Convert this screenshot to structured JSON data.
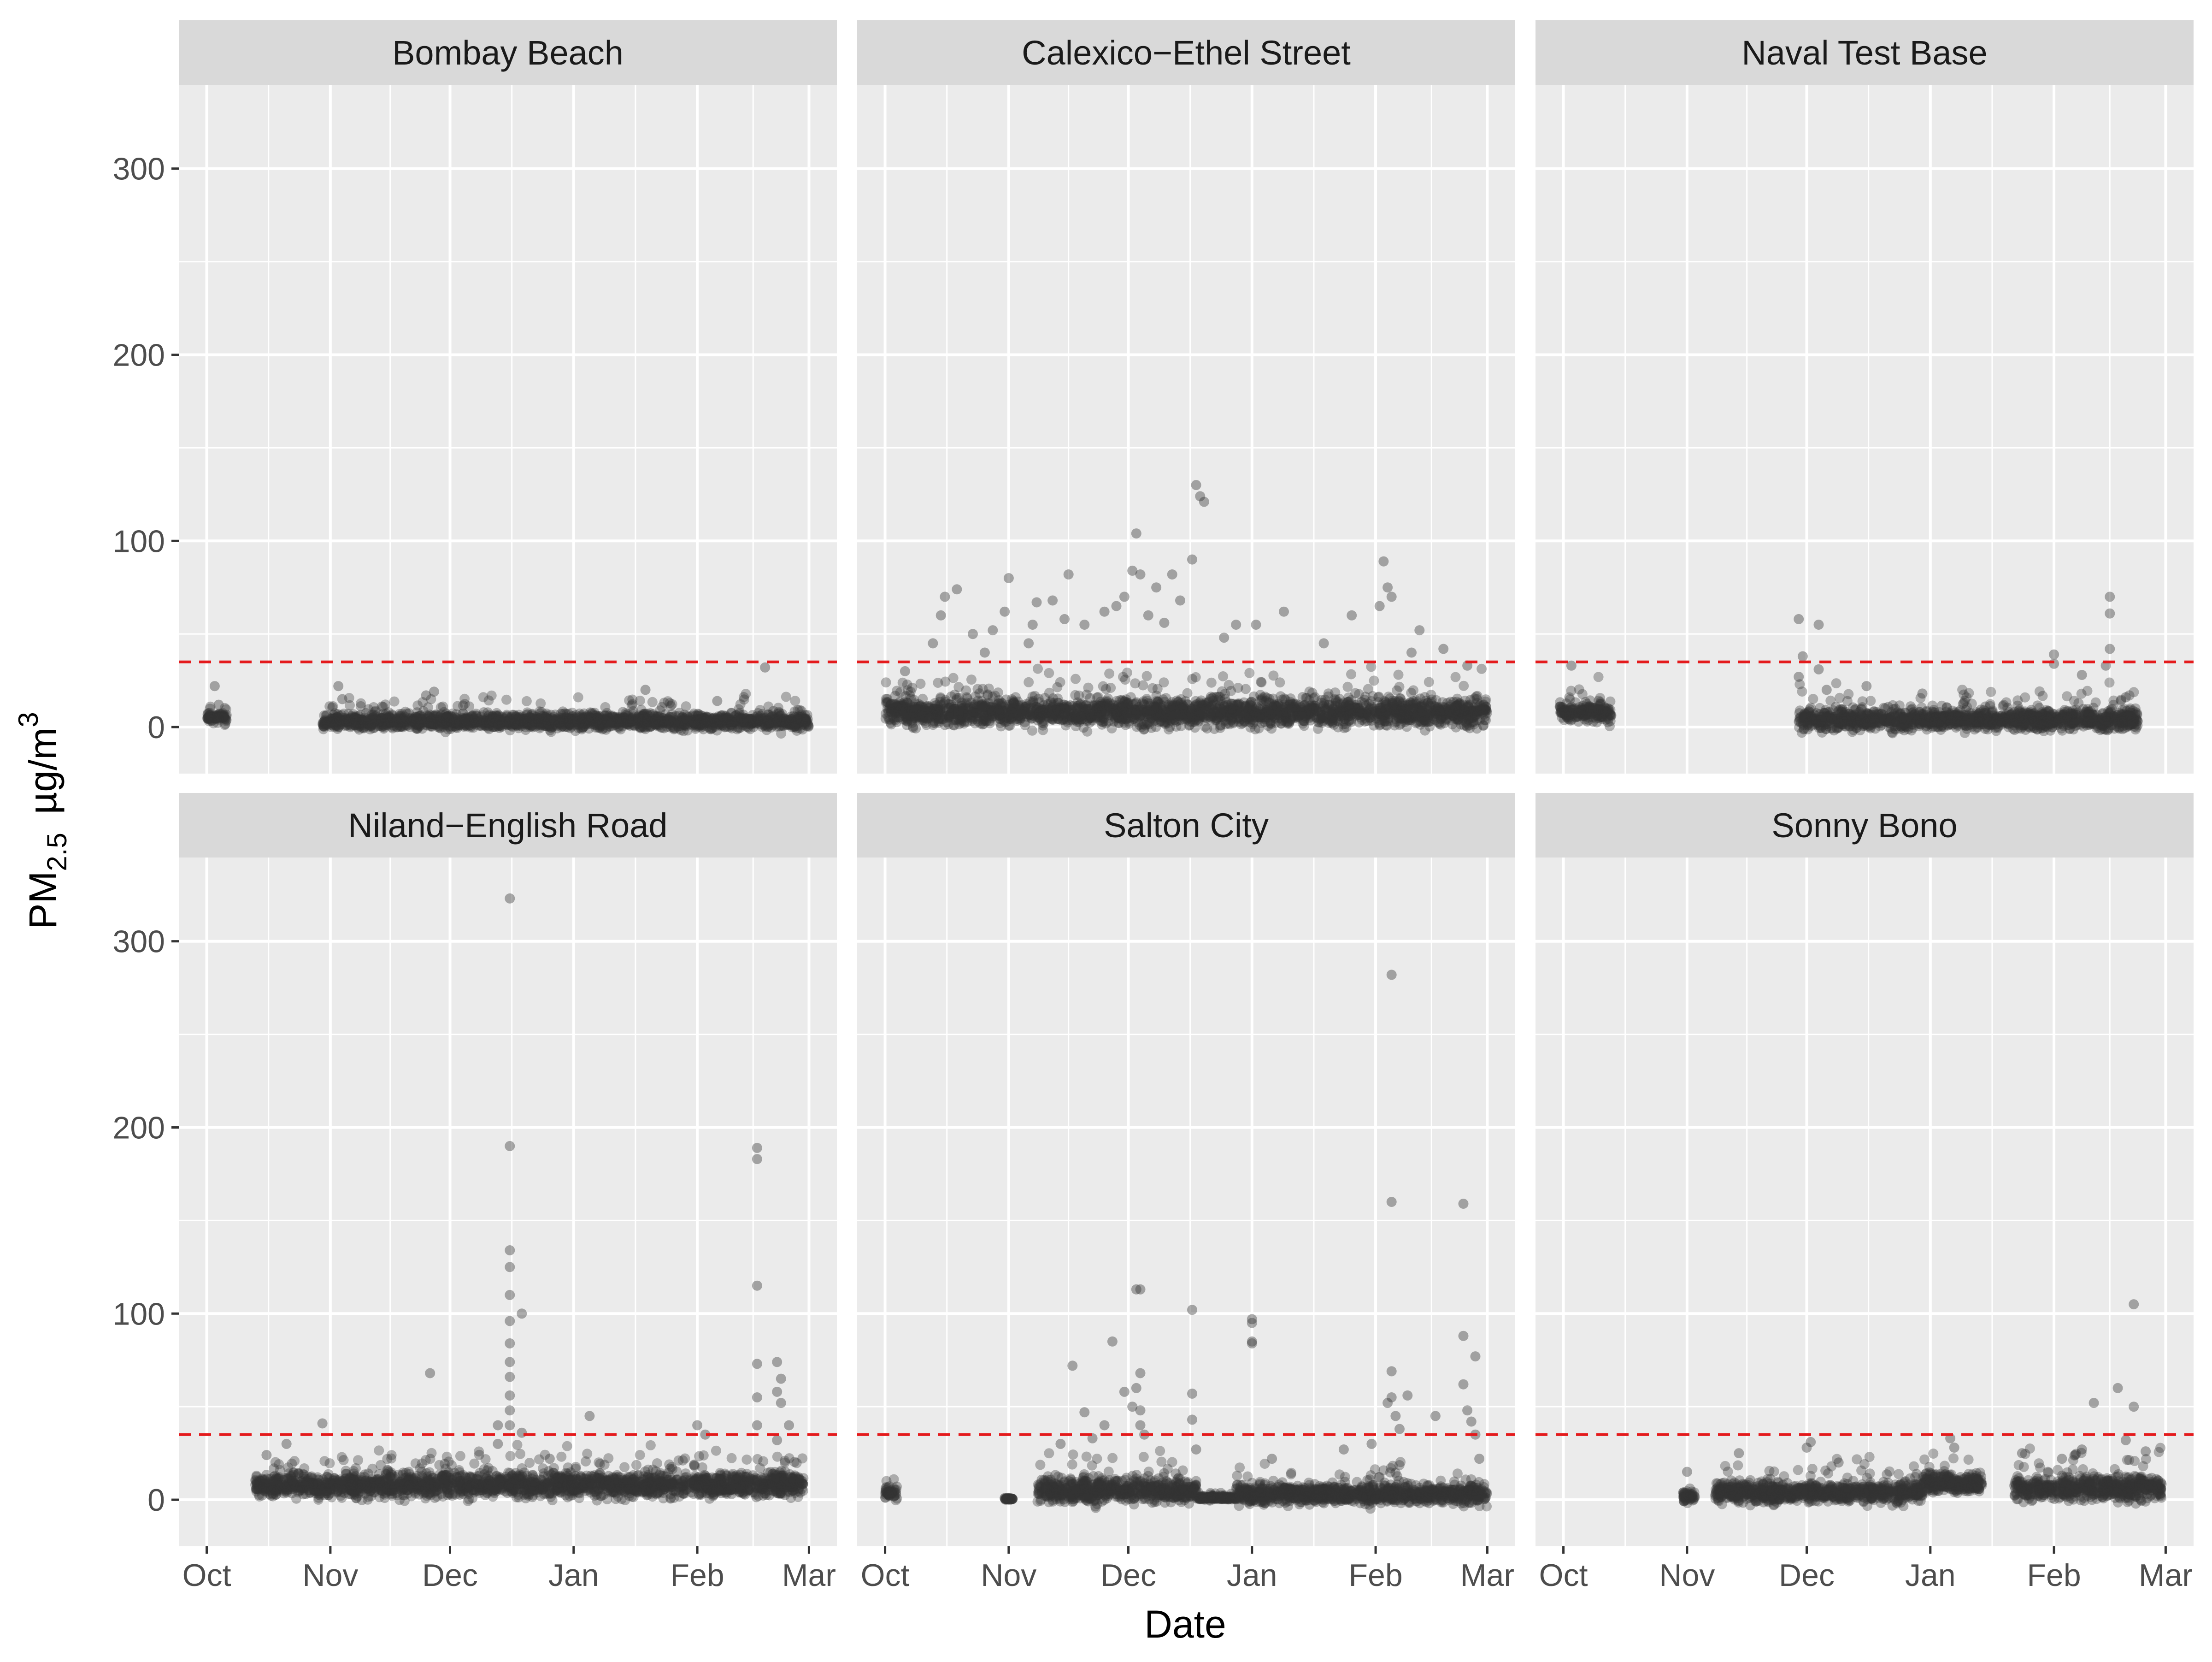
{
  "chart_data": {
    "type": "scatter",
    "faceted": true,
    "xlabel": "Date",
    "ylabel": {
      "prefix": "PM",
      "subscript": "2.5",
      "unit": "µg/m",
      "superscript": "3"
    },
    "x_ticks": [
      "Oct",
      "Nov",
      "Dec",
      "Jan",
      "Feb",
      "Mar"
    ],
    "x_tick_positions_day": [
      0,
      31,
      61,
      92,
      123,
      151
    ],
    "xlim_day": [
      -7,
      158
    ],
    "y_ticks": [
      "0",
      "100",
      "200",
      "300"
    ],
    "y_tick_values": [
      0,
      100,
      200,
      300
    ],
    "ylim": [
      -25,
      345
    ],
    "reference_line": {
      "value": 35,
      "color": "#e41a1c",
      "style": "dashed"
    },
    "point_color": "#333333",
    "panel_background": "#ebebeb",
    "strip_background": "#d9d9d9",
    "panels": [
      {
        "title": "Bombay Beach",
        "segments": [
          {
            "start": 0,
            "end": 5,
            "mean": 5,
            "spread": 3
          },
          {
            "start": 29,
            "end": 151,
            "mean": 3,
            "spread": 4
          }
        ],
        "outliers": [
          [
            2,
            22
          ],
          [
            3,
            12
          ],
          [
            33,
            22
          ],
          [
            34,
            15
          ],
          [
            55,
            17
          ],
          [
            57,
            19
          ],
          [
            110,
            20
          ],
          [
            128,
            14
          ],
          [
            140,
            32
          ]
        ]
      },
      {
        "title": "Calexico−Ethel Street",
        "segments": [
          {
            "start": 0,
            "end": 151,
            "mean": 8,
            "spread": 7
          }
        ],
        "outliers": [
          [
            5,
            30
          ],
          [
            12,
            45
          ],
          [
            14,
            60
          ],
          [
            15,
            70
          ],
          [
            18,
            74
          ],
          [
            22,
            50
          ],
          [
            25,
            40
          ],
          [
            27,
            52
          ],
          [
            30,
            62
          ],
          [
            31,
            80
          ],
          [
            36,
            45
          ],
          [
            37,
            55
          ],
          [
            38,
            67
          ],
          [
            42,
            68
          ],
          [
            45,
            58
          ],
          [
            46,
            82
          ],
          [
            50,
            55
          ],
          [
            55,
            62
          ],
          [
            58,
            65
          ],
          [
            60,
            70
          ],
          [
            62,
            84
          ],
          [
            63,
            104
          ],
          [
            64,
            82
          ],
          [
            66,
            60
          ],
          [
            68,
            75
          ],
          [
            70,
            56
          ],
          [
            72,
            82
          ],
          [
            74,
            68
          ],
          [
            78,
            130
          ],
          [
            79,
            124
          ],
          [
            80,
            121
          ],
          [
            77,
            90
          ],
          [
            85,
            48
          ],
          [
            88,
            55
          ],
          [
            93,
            55
          ],
          [
            100,
            62
          ],
          [
            110,
            45
          ],
          [
            117,
            60
          ],
          [
            124,
            65
          ],
          [
            125,
            89
          ],
          [
            126,
            75
          ],
          [
            127,
            70
          ],
          [
            132,
            40
          ],
          [
            134,
            52
          ],
          [
            140,
            42
          ],
          [
            146,
            33
          ]
        ]
      },
      {
        "title": "Naval Test Base",
        "segments": [
          {
            "start": -1,
            "end": 12,
            "mean": 8,
            "spread": 5
          },
          {
            "start": 59,
            "end": 144,
            "mean": 4,
            "spread": 5
          }
        ],
        "outliers": [
          [
            2,
            33
          ],
          [
            59,
            58
          ],
          [
            59,
            27
          ],
          [
            60,
            38
          ],
          [
            64,
            55
          ],
          [
            64,
            31
          ],
          [
            66,
            20
          ],
          [
            76,
            22
          ],
          [
            90,
            18
          ],
          [
            123,
            39
          ],
          [
            123,
            34
          ],
          [
            130,
            28
          ],
          [
            137,
            70
          ],
          [
            137,
            61
          ],
          [
            137,
            42
          ],
          [
            136,
            33
          ],
          [
            141,
            16
          ]
        ]
      },
      {
        "title": "Niland−English Road",
        "segments": [
          {
            "start": 12,
            "end": 150,
            "mean": 8,
            "spread": 6
          }
        ],
        "outliers": [
          [
            15,
            24
          ],
          [
            20,
            30
          ],
          [
            29,
            41
          ],
          [
            56,
            68
          ],
          [
            73,
            30
          ],
          [
            73,
            40
          ],
          [
            76,
            323
          ],
          [
            76,
            190
          ],
          [
            76,
            134
          ],
          [
            76,
            125
          ],
          [
            76,
            110
          ],
          [
            76,
            96
          ],
          [
            76,
            84
          ],
          [
            76,
            74
          ],
          [
            76,
            66
          ],
          [
            76,
            56
          ],
          [
            76,
            48
          ],
          [
            76,
            40
          ],
          [
            79,
            100
          ],
          [
            79,
            36
          ],
          [
            86,
            22
          ],
          [
            96,
            45
          ],
          [
            123,
            40
          ],
          [
            125,
            35
          ],
          [
            138,
            189
          ],
          [
            138,
            183
          ],
          [
            138,
            115
          ],
          [
            138,
            73
          ],
          [
            138,
            55
          ],
          [
            138,
            40
          ],
          [
            143,
            74
          ],
          [
            143,
            58
          ],
          [
            144,
            65
          ],
          [
            144,
            52
          ],
          [
            146,
            40
          ],
          [
            143,
            32
          ]
        ]
      },
      {
        "title": "Salton City",
        "segments": [
          {
            "start": 0,
            "end": 3,
            "mean": 4,
            "spread": 3
          },
          {
            "start": 30,
            "end": 32,
            "mean": 0.5,
            "spread": 0.5
          },
          {
            "start": 38,
            "end": 78,
            "mean": 5,
            "spread": 6
          },
          {
            "start": 78,
            "end": 88,
            "mean": 1,
            "spread": 1
          },
          {
            "start": 88,
            "end": 151,
            "mean": 3,
            "spread": 5
          }
        ],
        "outliers": [
          [
            44,
            30
          ],
          [
            47,
            72
          ],
          [
            50,
            47
          ],
          [
            52,
            33
          ],
          [
            55,
            40
          ],
          [
            57,
            85
          ],
          [
            60,
            58
          ],
          [
            62,
            50
          ],
          [
            63,
            60
          ],
          [
            64,
            68
          ],
          [
            64,
            48
          ],
          [
            64,
            40
          ],
          [
            64,
            113
          ],
          [
            63,
            113
          ],
          [
            65,
            35
          ],
          [
            77,
            102
          ],
          [
            77,
            57
          ],
          [
            77,
            43
          ],
          [
            78,
            27
          ],
          [
            92,
            97
          ],
          [
            92,
            95
          ],
          [
            92,
            85
          ],
          [
            92,
            84
          ],
          [
            97,
            22
          ],
          [
            115,
            27
          ],
          [
            122,
            30
          ],
          [
            127,
            282
          ],
          [
            127,
            160
          ],
          [
            127,
            69
          ],
          [
            127,
            55
          ],
          [
            126,
            52
          ],
          [
            128,
            45
          ],
          [
            129,
            38
          ],
          [
            131,
            56
          ],
          [
            138,
            45
          ],
          [
            145,
            159
          ],
          [
            145,
            88
          ],
          [
            145,
            62
          ],
          [
            146,
            48
          ],
          [
            147,
            42
          ],
          [
            148,
            77
          ],
          [
            148,
            35
          ],
          [
            149,
            22
          ]
        ]
      },
      {
        "title": "Sonny Bono",
        "segments": [
          {
            "start": 30,
            "end": 33,
            "mean": 2,
            "spread": 3
          },
          {
            "start": 38,
            "end": 90,
            "mean": 4,
            "spread": 5
          },
          {
            "start": 90,
            "end": 105,
            "mean": 9,
            "spread": 5
          },
          {
            "start": 113,
            "end": 150,
            "mean": 6,
            "spread": 6
          }
        ],
        "outliers": [
          [
            31,
            15
          ],
          [
            44,
            25
          ],
          [
            61,
            28
          ],
          [
            62,
            31
          ],
          [
            69,
            20
          ],
          [
            97,
            33
          ],
          [
            98,
            28
          ],
          [
            115,
            25
          ],
          [
            125,
            22
          ],
          [
            130,
            27
          ],
          [
            133,
            52
          ],
          [
            139,
            60
          ],
          [
            141,
            32
          ],
          [
            143,
            105
          ],
          [
            143,
            50
          ],
          [
            146,
            26
          ]
        ]
      }
    ]
  }
}
